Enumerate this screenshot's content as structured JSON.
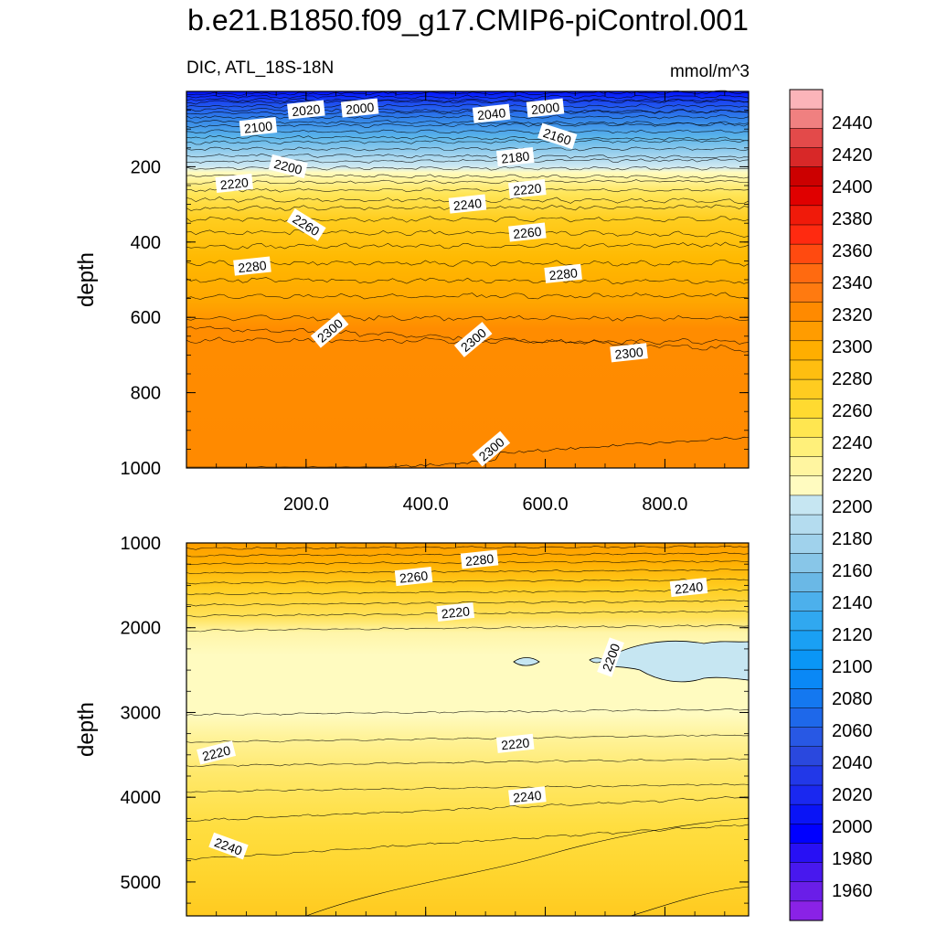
{
  "title": "b.e21.B1850.f09_g17.CMIP6-piControl.001",
  "subtitle_left": "DIC, ATL_18S-18N",
  "subtitle_right": "mmol/m^3",
  "chart_data": [
    {
      "type": "heatmap",
      "panel": "upper",
      "ylabel": "depth",
      "ylim": [
        1000,
        0
      ],
      "xlim": [
        0,
        940
      ],
      "x_ticks": [
        "200.0",
        "400.0",
        "600.0",
        "800.0"
      ],
      "x_tick_values": [
        200,
        400,
        600,
        800
      ],
      "y_ticks": [
        "200",
        "400",
        "600",
        "800",
        "1000"
      ],
      "y_tick_values": [
        200,
        400,
        600,
        800,
        1000
      ],
      "contour_labels": [
        {
          "text": "2020",
          "x": 200,
          "y": 50
        },
        {
          "text": "2000",
          "x": 290,
          "y": 45
        },
        {
          "text": "2040",
          "x": 510,
          "y": 60
        },
        {
          "text": "2000",
          "x": 600,
          "y": 45
        },
        {
          "text": "2100",
          "x": 120,
          "y": 95
        },
        {
          "text": "2160",
          "x": 620,
          "y": 120
        },
        {
          "text": "2180",
          "x": 550,
          "y": 175
        },
        {
          "text": "2200",
          "x": 170,
          "y": 200
        },
        {
          "text": "2220",
          "x": 80,
          "y": 245
        },
        {
          "text": "2220",
          "x": 570,
          "y": 260
        },
        {
          "text": "2240",
          "x": 470,
          "y": 300
        },
        {
          "text": "2260",
          "x": 200,
          "y": 355
        },
        {
          "text": "2260",
          "x": 570,
          "y": 375
        },
        {
          "text": "2280",
          "x": 110,
          "y": 465
        },
        {
          "text": "2280",
          "x": 630,
          "y": 485
        },
        {
          "text": "2300",
          "x": 240,
          "y": 635
        },
        {
          "text": "2300",
          "x": 480,
          "y": 660
        },
        {
          "text": "2300",
          "x": 740,
          "y": 695
        },
        {
          "text": "2300",
          "x": 510,
          "y": 950
        }
      ]
    },
    {
      "type": "heatmap",
      "panel": "lower",
      "ylabel": "depth",
      "ylim": [
        5400,
        1000
      ],
      "xlim": [
        0,
        940
      ],
      "y_ticks": [
        "1000",
        "2000",
        "3000",
        "4000",
        "5000"
      ],
      "y_tick_values": [
        1000,
        2000,
        3000,
        4000,
        5000
      ],
      "contour_labels": [
        {
          "text": "2280",
          "x": 490,
          "y": 1200
        },
        {
          "text": "2260",
          "x": 380,
          "y": 1400
        },
        {
          "text": "2240",
          "x": 840,
          "y": 1530
        },
        {
          "text": "2220",
          "x": 450,
          "y": 1820
        },
        {
          "text": "2200",
          "x": 710,
          "y": 2350
        },
        {
          "text": "2220",
          "x": 50,
          "y": 3480
        },
        {
          "text": "2220",
          "x": 550,
          "y": 3370
        },
        {
          "text": "2240",
          "x": 570,
          "y": 3990
        },
        {
          "text": "2240",
          "x": 70,
          "y": 4580
        }
      ]
    }
  ],
  "colorbar": {
    "labels": [
      "2440",
      "2420",
      "2400",
      "2380",
      "2360",
      "2340",
      "2320",
      "2300",
      "2280",
      "2260",
      "2240",
      "2220",
      "2200",
      "2180",
      "2160",
      "2140",
      "2120",
      "2100",
      "2080",
      "2060",
      "2040",
      "2020",
      "2000",
      "1980",
      "1960"
    ],
    "colors": [
      "#fbb4b9",
      "#f08080",
      "#e34a4a",
      "#d82828",
      "#cc0000",
      "#e00000",
      "#f01a0a",
      "#ff2a10",
      "#ff4a10",
      "#ff6a10",
      "#ff7a10",
      "#ff8a00",
      "#ff9c00",
      "#ffae00",
      "#ffbe10",
      "#ffcc20",
      "#ffda30",
      "#ffe650",
      "#fff07a",
      "#fff5a0",
      "#fffbc0",
      "#c6e6f2",
      "#b4dcef",
      "#a0d2ec",
      "#88c6e8",
      "#6ab8e6",
      "#4cb0ec",
      "#30a8f0",
      "#1aa0f4",
      "#0a96f6",
      "#0a88f6",
      "#1478f0",
      "#1e68ea",
      "#2858e4",
      "#2a48de",
      "#2238e8",
      "#1a28f0",
      "#0a14f6",
      "#0000ff",
      "#2810f4",
      "#4818ee",
      "#6a1ee8",
      "#8a22e6"
    ]
  },
  "palette": {
    "deep_blue": "#0010ff",
    "light_blue": "#c6e6f2",
    "pale_yellow": "#fffbc0",
    "yellow": "#ffe650",
    "gold": "#ffd22a",
    "orange_light": "#ffb000",
    "orange": "#ff9c00",
    "orange_deep": "#ff8c00"
  }
}
